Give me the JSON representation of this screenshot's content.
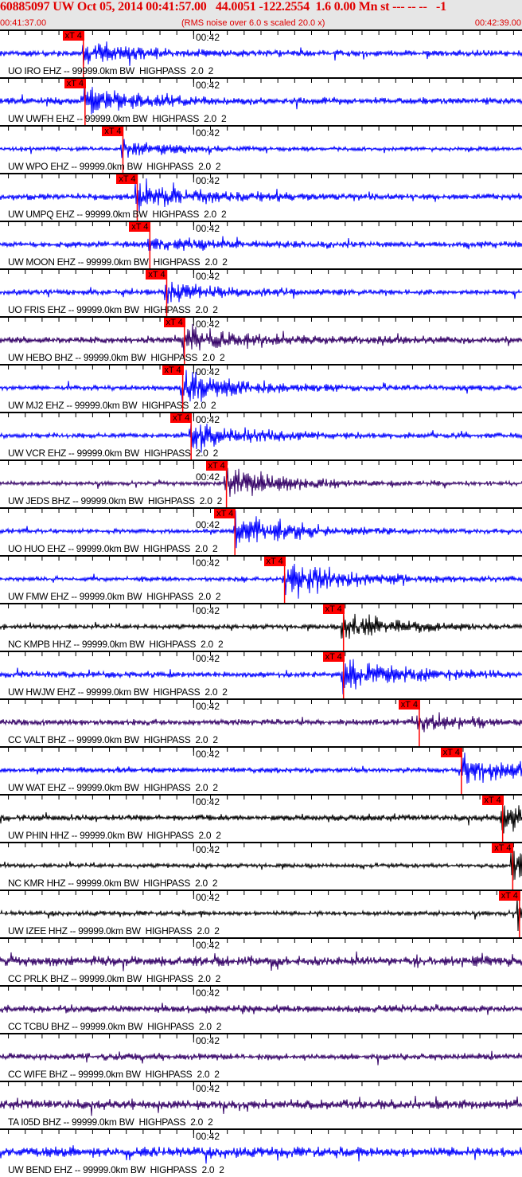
{
  "header": {
    "title": "60885097 UW Oct 05, 2014 00:41:57.00   44.0051 -122.2554  1.6 0.00 Mn st --- -- --   -1",
    "start_time": "00:41:37.00",
    "end_time": "00:42:39.00",
    "note": "(RMS noise over 6.0 s scaled 20.0 x)"
  },
  "chart_data": {
    "type": "line",
    "title": "60885097 UW Oct 05, 2014 00:41:57.00   44.0051 -122.2554  1.6 0.00 Mn st --- -- --   -1",
    "x_range": [
      "00:41:37.00",
      "00:42:39.00"
    ],
    "x_tick_label": "00:42",
    "grid": false,
    "pick_label": "xT 4",
    "colors": {
      "EHZ_blue": "#0000ff",
      "BHZ_purple": "#330066",
      "HHZ_black": "#000000",
      "pick_red": "#ff0000"
    },
    "traces": [
      {
        "label": "UO IRO EHZ -- 99999.0km BW  HIGHPASS  2.0  2",
        "color": "#0000ff",
        "pick": "00:41:46.9"
      },
      {
        "label": "UW UWFH EHZ -- 99999.0km BW  HIGHPASS  2.0  2",
        "color": "#0000ff",
        "pick": "00:41:47.1"
      },
      {
        "label": "UW WPO EHZ -- 99999.0km BW  HIGHPASS  2.0  2",
        "color": "#0000ff",
        "pick": "00:41:51.6"
      },
      {
        "label": "UW UMPQ EHZ -- 99999.0km BW  HIGHPASS  2.0  2",
        "color": "#0000ff",
        "pick": "00:41:53.3"
      },
      {
        "label": "UW MOON EHZ -- 99999.0km BW  HIGHPASS  2.0  2",
        "color": "#0000ff",
        "pick": "00:41:54.8"
      },
      {
        "label": "UO FRIS EHZ -- 99999.0km BW  HIGHPASS  2.0  2",
        "color": "#0000ff",
        "pick": "00:41:56.8"
      },
      {
        "label": "UW HEBO BHZ -- 99999.0km BW  HIGHPASS  2.0  2",
        "color": "#330066",
        "pick": "00:41:58.9"
      },
      {
        "label": "UW MJ2 EHZ -- 99999.0km BW  HIGHPASS  2.0  2",
        "color": "#0000ff",
        "pick": "00:41:58.7"
      },
      {
        "label": "UW VCR EHZ -- 99999.0km BW  HIGHPASS  2.0  2",
        "color": "#0000ff",
        "pick": "00:41:59.7"
      },
      {
        "label": "UW JEDS BHZ -- 99999.0km BW  HIGHPASS  2.0  2",
        "color": "#330066",
        "pick": "00:42:03.9"
      },
      {
        "label": "UO HUO EHZ -- 99999.0km BW  HIGHPASS  2.0  2",
        "color": "#0000ff",
        "pick": "00:42:04.9"
      },
      {
        "label": "UW FMW EHZ -- 99999.0km BW  HIGHPASS  2.0  2",
        "color": "#0000ff",
        "pick": "00:42:10.8"
      },
      {
        "label": "NC KMPB HHZ -- 99999.0km BW  HIGHPASS  2.0  2",
        "color": "#000000",
        "pick": "00:42:17.8"
      },
      {
        "label": "UW HWJW EHZ -- 99999.0km BW  HIGHPASS  2.0  2",
        "color": "#0000ff",
        "pick": "00:42:17.8"
      },
      {
        "label": "CC VALT BHZ -- 99999.0km BW  HIGHPASS  2.0  2",
        "color": "#330066",
        "pick": "00:42:26.8"
      },
      {
        "label": "UW WAT EHZ -- 99999.0km BW  HIGHPASS  2.0  2",
        "color": "#0000ff",
        "pick": "00:42:31.8"
      },
      {
        "label": "UW PHIN HHZ -- 99999.0km BW  HIGHPASS  2.0  2",
        "color": "#000000",
        "pick": "00:42:36.7"
      },
      {
        "label": "NC KMR HHZ -- 99999.0km BW  HIGHPASS  2.0  2",
        "color": "#000000",
        "pick": "00:42:37.9"
      },
      {
        "label": "UW IZEE HHZ -- 99999.0km BW  HIGHPASS  2.0  2",
        "color": "#000000",
        "pick": "00:42:38.7"
      },
      {
        "label": "CC PRLK BHZ -- 99999.0km BW  HIGHPASS  2.0  2",
        "color": "#330066",
        "pick": null
      },
      {
        "label": "CC TCBU BHZ -- 99999.0km BW  HIGHPASS  2.0  2",
        "color": "#330066",
        "pick": null
      },
      {
        "label": "CC WIFE BHZ -- 99999.0km BW  HIGHPASS  2.0  2",
        "color": "#330066",
        "pick": null
      },
      {
        "label": "TA I05D BHZ -- 99999.0km BW  HIGHPASS  2.0  2",
        "color": "#330066",
        "pick": null
      },
      {
        "label": "UW BEND EHZ -- 99999.0km BW  HIGHPASS  2.0  2",
        "color": "#0000ff",
        "pick": null
      }
    ]
  }
}
